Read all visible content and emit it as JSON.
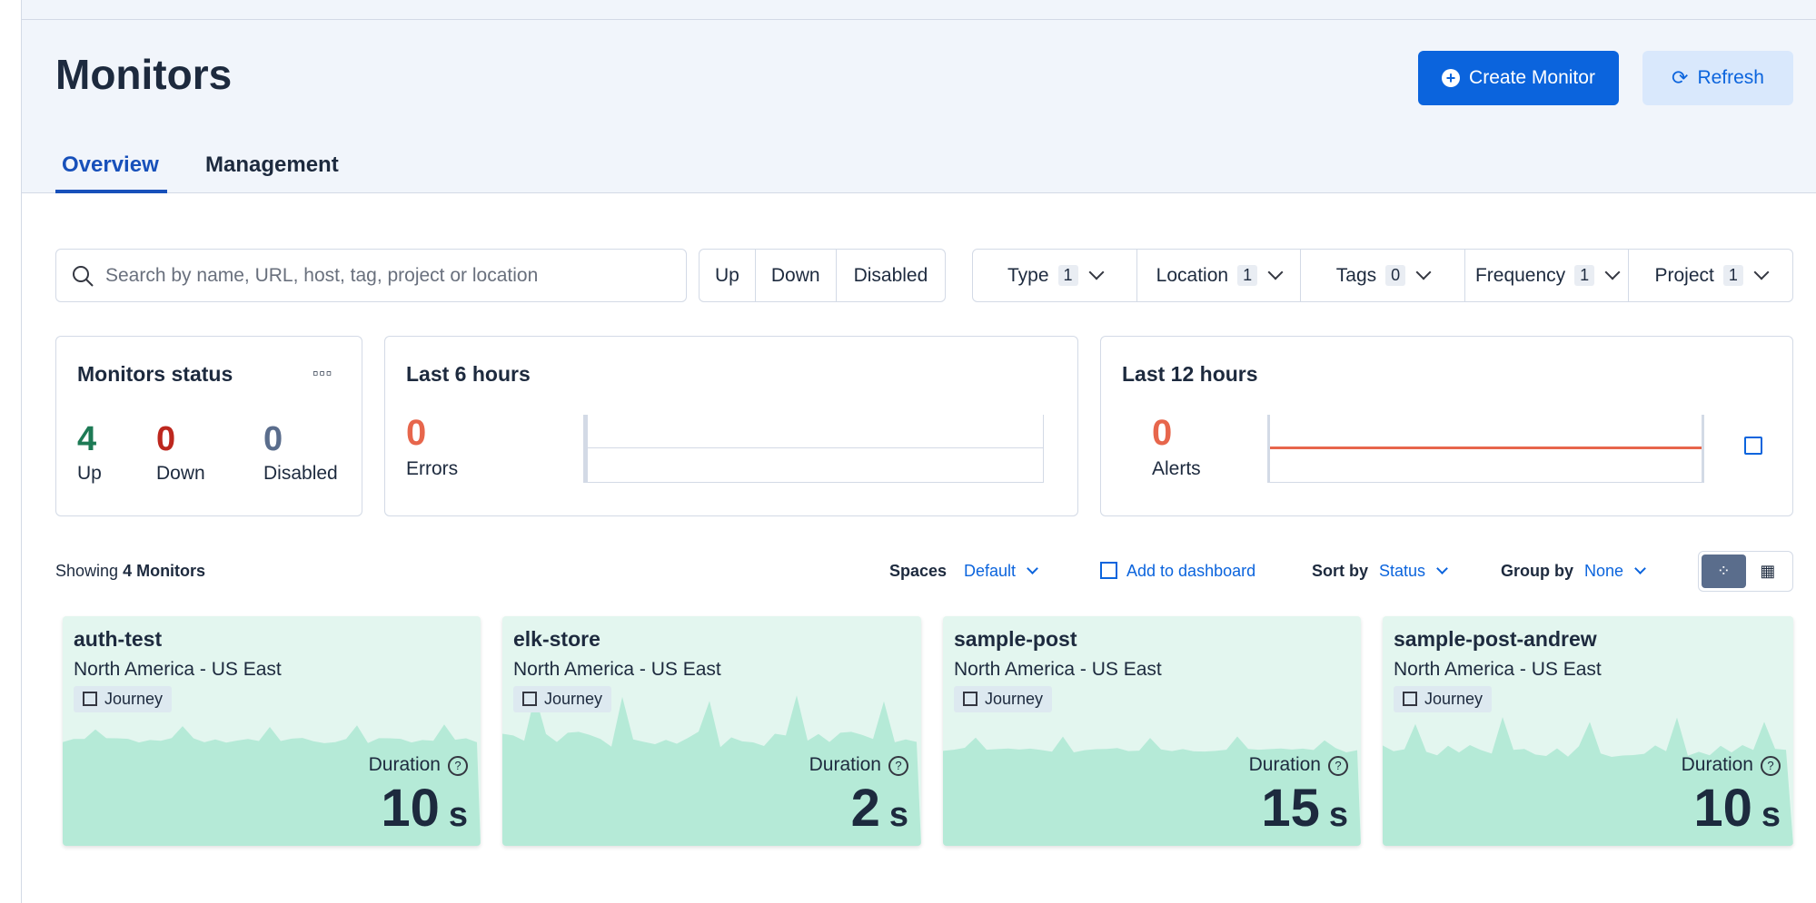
{
  "header": {
    "title": "Monitors",
    "create_button": "Create Monitor",
    "refresh_button": "Refresh"
  },
  "tabs": [
    "Overview",
    "Management"
  ],
  "search_placeholder": "Search by name, URL, host, tag, project or location",
  "status_filters": [
    "Up",
    "Down",
    "Disabled"
  ],
  "filters": [
    {
      "label": "Type",
      "count": 1
    },
    {
      "label": "Location",
      "count": 1
    },
    {
      "label": "Tags",
      "count": 0
    },
    {
      "label": "Frequency",
      "count": 1
    },
    {
      "label": "Project",
      "count": 1
    }
  ],
  "summary": {
    "monitors_status": {
      "title": "Monitors status",
      "counts": [
        {
          "value": 4,
          "label": "Up"
        },
        {
          "value": 0,
          "label": "Down"
        },
        {
          "value": 0,
          "label": "Disabled"
        }
      ]
    },
    "last_6_hours": {
      "title": "Last 6 hours",
      "value": 0,
      "label": "Errors"
    },
    "last_12_hours": {
      "title": "Last 12 hours",
      "value": 0,
      "label": "Alerts"
    }
  },
  "toolbar": {
    "showing_prefix": "Showing",
    "showing_count": "4 Monitors",
    "spaces_label": "Spaces",
    "spaces_value": "Default",
    "add_to_dashboard": "Add to dashboard",
    "sort_label": "Sort by",
    "sort_value": "Status",
    "group_label": "Group by",
    "group_value": "None"
  },
  "monitors": [
    {
      "name": "auth-test",
      "location": "North America - US East",
      "type": "Journey",
      "duration_label": "Duration",
      "duration": 10,
      "unit": "s"
    },
    {
      "name": "elk-store",
      "location": "North America - US East",
      "type": "Journey",
      "duration_label": "Duration",
      "duration": 2,
      "unit": "s"
    },
    {
      "name": "sample-post",
      "location": "North America - US East",
      "type": "Journey",
      "duration_label": "Duration",
      "duration": 15,
      "unit": "s"
    },
    {
      "name": "sample-post-andrew",
      "location": "North America - US East",
      "type": "Journey",
      "duration_label": "Duration",
      "duration": 10,
      "unit": "s"
    }
  ]
}
